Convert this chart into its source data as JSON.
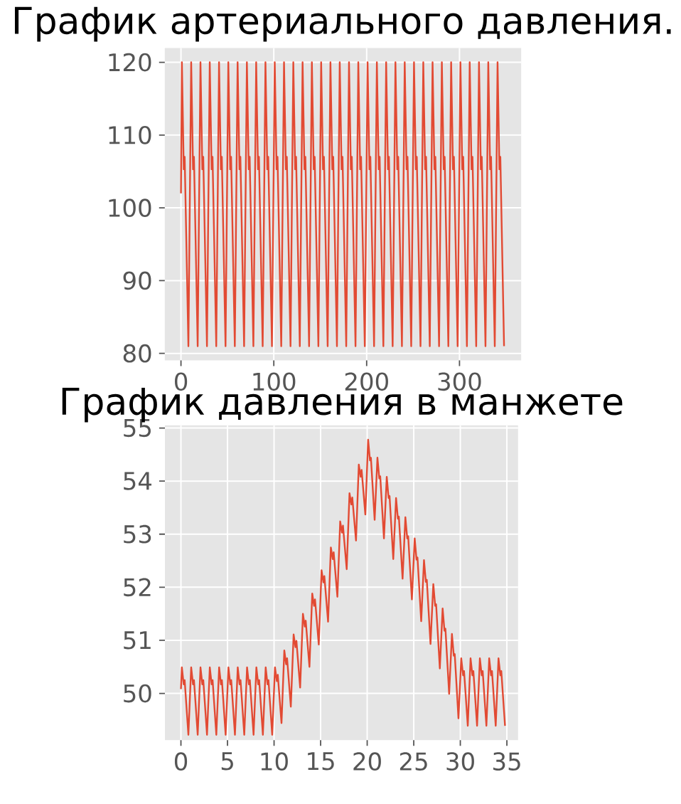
{
  "chart_data": [
    {
      "type": "line",
      "title": "График артериального давления.",
      "x": [
        0,
        1,
        3,
        4,
        8,
        11,
        13,
        14,
        18,
        21,
        23,
        24,
        28,
        31,
        33,
        34,
        38,
        41,
        43,
        44,
        48,
        51,
        53,
        54,
        58,
        61,
        63,
        64,
        68,
        71,
        73,
        74,
        78,
        81,
        83,
        84,
        88,
        91,
        93,
        94,
        98,
        101,
        103,
        104,
        108,
        111,
        113,
        114,
        118,
        121,
        123,
        124,
        128,
        131,
        133,
        134,
        138,
        141,
        143,
        144,
        148,
        151,
        153,
        154,
        158,
        161,
        163,
        164,
        168,
        171,
        173,
        174,
        178,
        181,
        183,
        184,
        188,
        191,
        193,
        194,
        198,
        201,
        203,
        204,
        208,
        211,
        213,
        214,
        218,
        221,
        223,
        224,
        228,
        231,
        233,
        234,
        238,
        241,
        243,
        244,
        248,
        251,
        253,
        254,
        258,
        261,
        263,
        264,
        268,
        271,
        273,
        274,
        278,
        281,
        283,
        284,
        288,
        291,
        293,
        294,
        298,
        301,
        303,
        304,
        308,
        311,
        313,
        314,
        318,
        321,
        323,
        324,
        328,
        331,
        333,
        334,
        338,
        341,
        343,
        344,
        348
      ],
      "series": [
        {
          "color": "#e24a33",
          "values": [
            102,
            120,
            105.3,
            107,
            81,
            120,
            105.3,
            107,
            81,
            120,
            105.3,
            107,
            81,
            120,
            105.3,
            107,
            81,
            120,
            105.3,
            107,
            81,
            120,
            105.3,
            107,
            81,
            120,
            105.3,
            107,
            81,
            120,
            105.3,
            107,
            81,
            120,
            105.3,
            107,
            81,
            120,
            105.3,
            107,
            81,
            120,
            105.3,
            107,
            81,
            120,
            105.3,
            107,
            81,
            120,
            105.3,
            107,
            81,
            120,
            105.3,
            107,
            81,
            120,
            105.3,
            107,
            81,
            120,
            105.3,
            107,
            81,
            120,
            105.3,
            107,
            81,
            120,
            105.3,
            107,
            81,
            120,
            105.3,
            107,
            81,
            120,
            105.3,
            107,
            81,
            120,
            105.3,
            107,
            81,
            120,
            105.3,
            107,
            81,
            120,
            105.3,
            107,
            81,
            120,
            105.3,
            107,
            81,
            120,
            105.3,
            107,
            81,
            120,
            105.3,
            107,
            81,
            120,
            105.3,
            107,
            81,
            120,
            105.3,
            107,
            81,
            120,
            105.3,
            107,
            81,
            120,
            105.3,
            107,
            81,
            120,
            105.3,
            107,
            81,
            120,
            105.3,
            107,
            81,
            120,
            105.3,
            107,
            81,
            120,
            105.3,
            107,
            81,
            120,
            105.3,
            107,
            81
          ]
        }
      ],
      "xlim": [
        -17.45,
        366.45
      ],
      "ylim": [
        79.05,
        121.95
      ],
      "xticks": [
        0,
        100,
        200,
        300
      ],
      "yticks": [
        80,
        90,
        100,
        110,
        120
      ],
      "grid": true
    },
    {
      "type": "line",
      "title": "График давления в манжете",
      "x": [
        0,
        0.1,
        0.3,
        0.4,
        0.8,
        1.1,
        1.3,
        1.4,
        1.8,
        2.1,
        2.3,
        2.4,
        2.8,
        3.1,
        3.3,
        3.4,
        3.8,
        4.1,
        4.3,
        4.4,
        4.8,
        5.1,
        5.3,
        5.4,
        5.8,
        6.1,
        6.3,
        6.4,
        6.8,
        7.1,
        7.3,
        7.4,
        7.8,
        8.1,
        8.3,
        8.4,
        8.8,
        9.1,
        9.3,
        9.4,
        9.8,
        10.1,
        10.3,
        10.4,
        10.8,
        11.1,
        11.3,
        11.4,
        11.8,
        12.1,
        12.3,
        12.4,
        12.8,
        13.1,
        13.3,
        13.4,
        13.8,
        14.1,
        14.3,
        14.4,
        14.8,
        15.1,
        15.3,
        15.4,
        15.8,
        16.1,
        16.3,
        16.4,
        16.8,
        17.1,
        17.3,
        17.4,
        17.8,
        18.1,
        18.3,
        18.4,
        18.8,
        19.1,
        19.3,
        19.4,
        19.8,
        20.1,
        20.3,
        20.4,
        20.8,
        21.1,
        21.3,
        21.4,
        21.8,
        22.1,
        22.3,
        22.4,
        22.8,
        23.1,
        23.3,
        23.4,
        23.8,
        24.1,
        24.3,
        24.4,
        24.8,
        25.1,
        25.3,
        25.4,
        25.8,
        26.1,
        26.3,
        26.4,
        26.8,
        27.1,
        27.3,
        27.4,
        27.8,
        28.1,
        28.3,
        28.4,
        28.8,
        29.1,
        29.3,
        29.4,
        29.8,
        30.1,
        30.3,
        30.4,
        30.8,
        31.1,
        31.3,
        31.4,
        31.8,
        32.1,
        32.3,
        32.4,
        32.8,
        33.1,
        33.3,
        33.4,
        33.8,
        34.1,
        34.3,
        34.4,
        34.8
      ],
      "series": [
        {
          "color": "#e24a33",
          "values": [
            50.08,
            50.49,
            50.17,
            50.25,
            49.22,
            50.49,
            50.17,
            50.25,
            49.22,
            50.49,
            50.17,
            50.25,
            49.22,
            50.49,
            50.17,
            50.25,
            49.22,
            50.49,
            50.17,
            50.25,
            49.22,
            50.49,
            50.17,
            50.25,
            49.22,
            50.49,
            50.17,
            50.25,
            49.22,
            50.49,
            50.17,
            50.25,
            49.22,
            50.49,
            50.17,
            50.25,
            49.22,
            50.49,
            50.17,
            50.25,
            49.22,
            50.49,
            50.23,
            50.35,
            49.44,
            50.81,
            50.55,
            50.66,
            49.75,
            51.11,
            50.87,
            50.99,
            50.11,
            51.5,
            51.26,
            51.37,
            50.5,
            51.88,
            51.65,
            51.77,
            50.92,
            52.32,
            52.09,
            52.21,
            51.35,
            52.75,
            52.53,
            52.66,
            51.82,
            53.24,
            53.03,
            53.16,
            52.34,
            53.77,
            53.56,
            53.69,
            52.88,
            54.31,
            54.08,
            54.21,
            53.37,
            54.78,
            54.39,
            54.44,
            53.27,
            54.44,
            54.05,
            54.09,
            52.92,
            54.08,
            53.68,
            53.72,
            52.53,
            53.68,
            53.29,
            53.33,
            52.16,
            53.32,
            52.92,
            52.96,
            51.77,
            52.92,
            52.52,
            52.56,
            51.36,
            52.51,
            52.1,
            52.14,
            50.93,
            52.06,
            51.65,
            51.68,
            50.47,
            51.6,
            51.18,
            51.22,
            49.99,
            51.12,
            50.71,
            50.74,
            49.53,
            50.66,
            50.34,
            50.42,
            49.39,
            50.66,
            50.34,
            50.42,
            49.39,
            50.66,
            50.34,
            50.42,
            49.39,
            50.66,
            50.34,
            50.42,
            49.39,
            50.66,
            50.34,
            50.42,
            49.39
          ]
        }
      ],
      "xlim": [
        -1.72,
        36.2
      ],
      "ylim": [
        49.12,
        55.05
      ],
      "xticks": [
        0,
        5,
        10,
        15,
        20,
        25,
        30,
        35
      ],
      "yticks": [
        50,
        51,
        52,
        53,
        54,
        55
      ],
      "grid": true
    }
  ]
}
